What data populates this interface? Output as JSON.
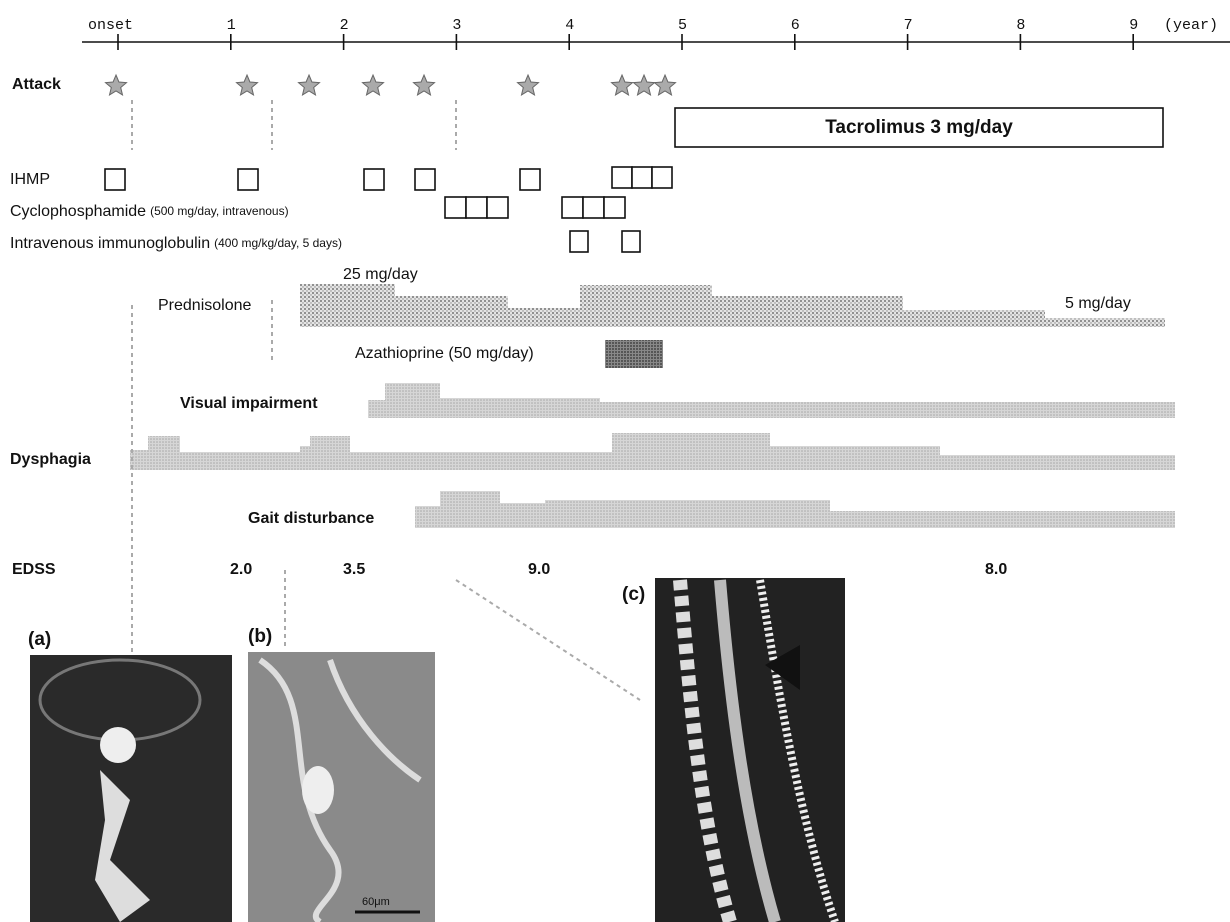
{
  "axis": {
    "ticks": [
      "onset",
      "1",
      "2",
      "3",
      "4",
      "5",
      "6",
      "7",
      "8",
      "9"
    ],
    "unit": "(year)"
  },
  "attack": {
    "label": "Attack"
  },
  "tacrolimus": {
    "label": "Tacrolimus 3 mg/day"
  },
  "treatments": {
    "ihmp": "IHMP",
    "cyclophosphamide": {
      "name": "Cyclophosphamide",
      "detail": "(500 mg/day, intravenous)"
    },
    "ivig": {
      "name": "Intravenous immunoglobulin",
      "detail": "(400 mg/kg/day, 5 days)"
    },
    "prednisolone": {
      "name": "Prednisolone",
      "start_dose": "25 mg/day",
      "end_dose": "5 mg/day"
    },
    "azathioprine": "Azathioprine (50 mg/day)"
  },
  "symptoms": [
    "Visual impairment",
    "Dysphagia",
    "Gait disturbance"
  ],
  "edss": {
    "label": "EDSS",
    "scores": [
      "2.0",
      "3.5",
      "9.0",
      "8.0"
    ]
  },
  "panels": [
    "(a)",
    "(b)",
    "(c)"
  ],
  "scale_bar": "60μm"
}
